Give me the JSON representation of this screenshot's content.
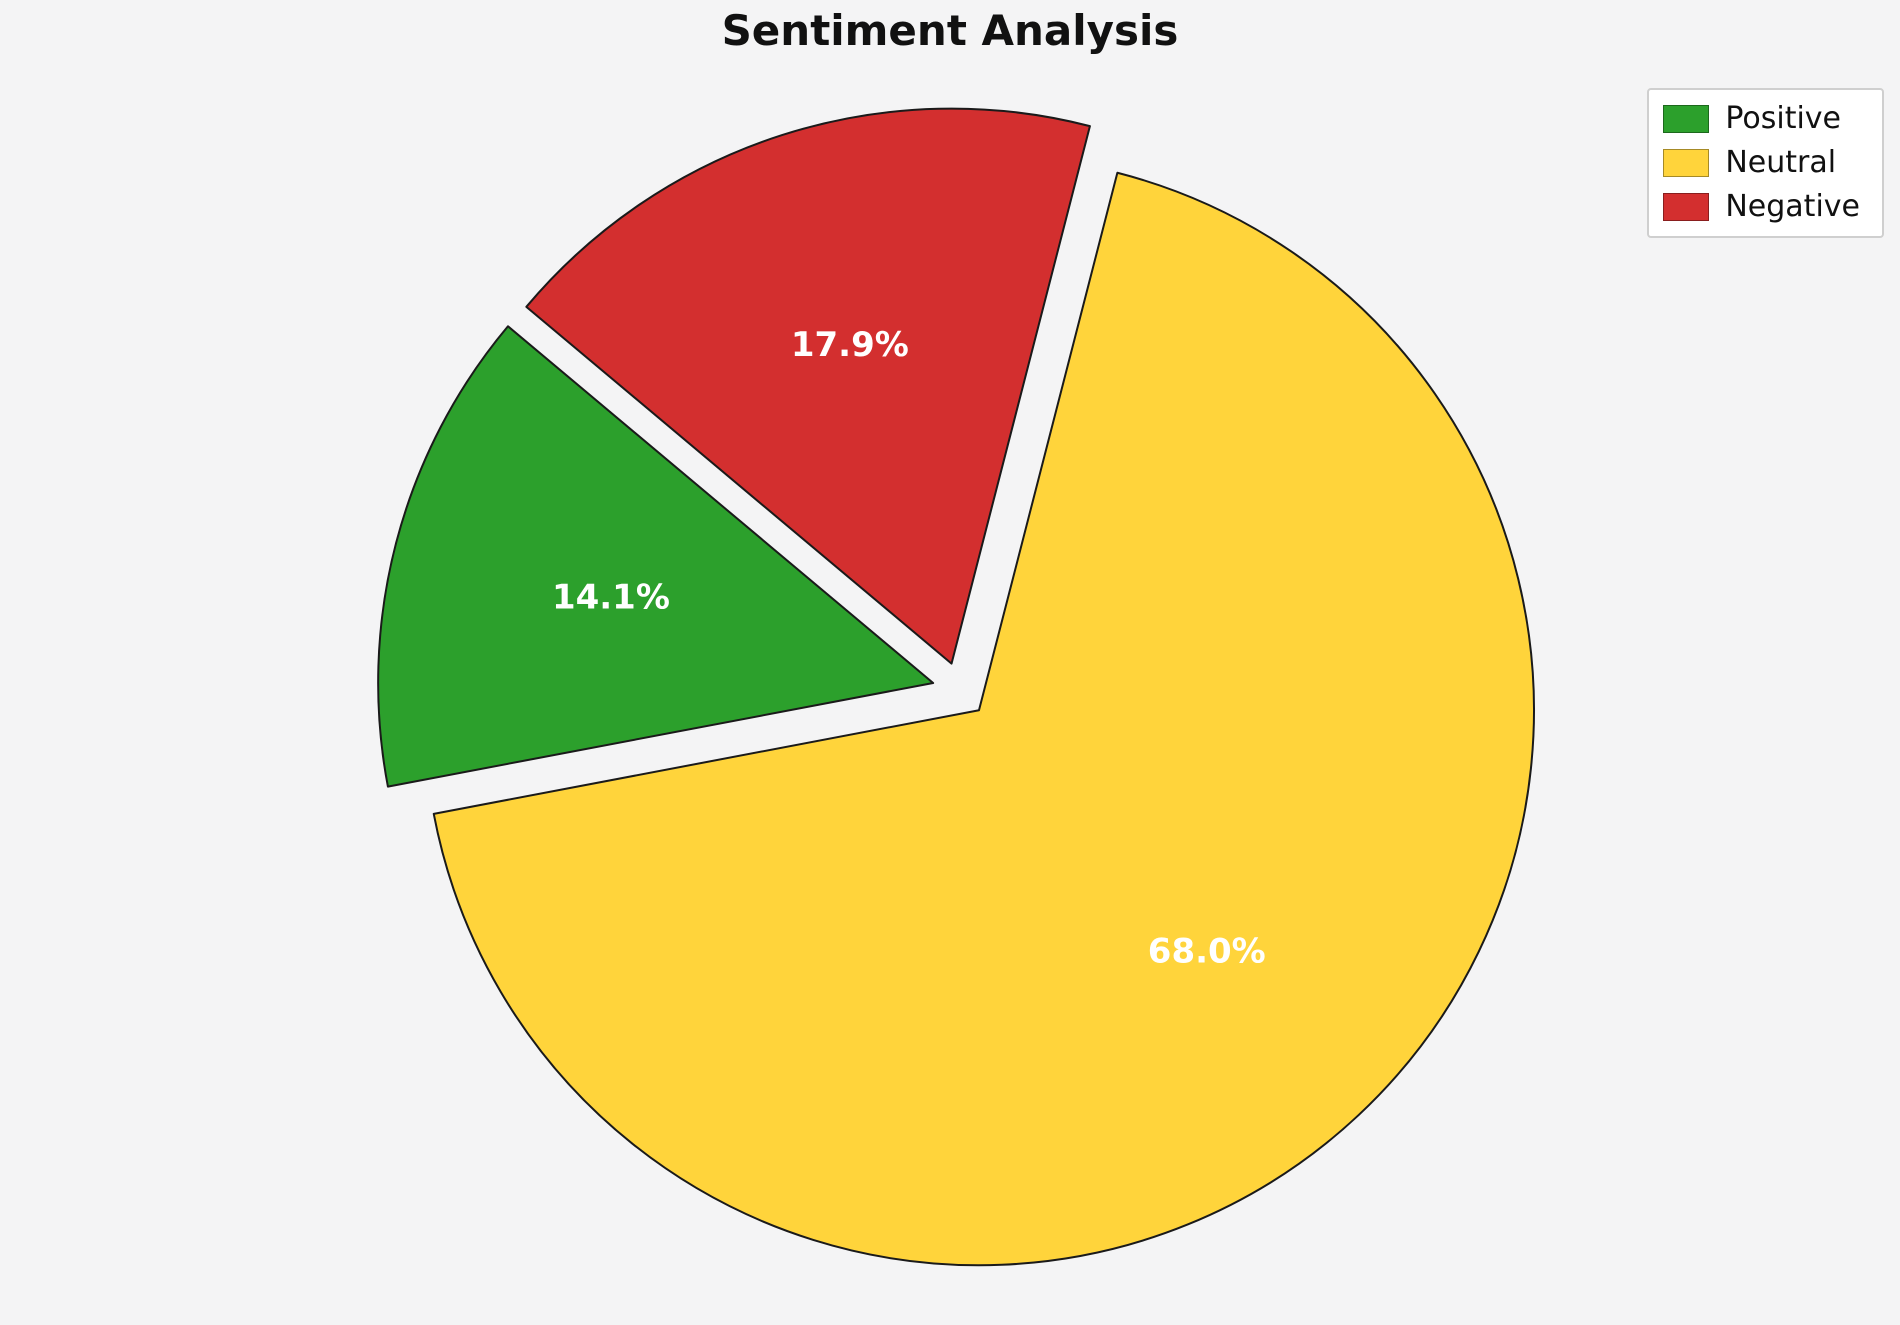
{
  "page": {
    "background_color": "#f4f4f5"
  },
  "title": "Sentiment Analysis",
  "legend": {
    "position": "upper right",
    "items": [
      {
        "label": "Positive",
        "color": "#2ca02c"
      },
      {
        "label": "Neutral",
        "color": "#ffd43b"
      },
      {
        "label": "Negative",
        "color": "#d32f2f"
      }
    ]
  },
  "chart_data": {
    "type": "pie",
    "title": "Sentiment Analysis",
    "labels": [
      "Positive",
      "Neutral",
      "Negative"
    ],
    "values": [
      14.1,
      68.0,
      17.9
    ],
    "value_labels": [
      "14.1%",
      "68.0%",
      "17.9%"
    ],
    "colors": [
      "#2ca02c",
      "#ffd43b",
      "#d32f2f"
    ],
    "edge_color": "#1a1a1a",
    "start_angle": 140,
    "direction": "counterclockwise",
    "explode": [
      0.05,
      0.05,
      0.05
    ],
    "label_distance": 0.6,
    "legend_position": "upper right",
    "legend_entries": [
      "Positive",
      "Neutral",
      "Negative"
    ]
  }
}
